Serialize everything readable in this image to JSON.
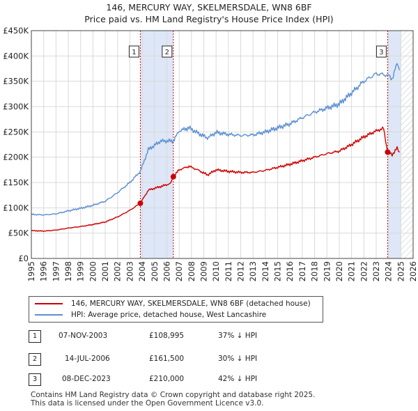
{
  "chart_data": {
    "type": "line",
    "title": "146, MERCURY WAY, SKELMERSDALE, WN8 6BF",
    "subtitle": "Price paid vs. HM Land Registry's House Price Index (HPI)",
    "xlim": [
      1995,
      2026
    ],
    "ylim": [
      0,
      450000
    ],
    "y_ticks": [
      0,
      50000,
      100000,
      150000,
      200000,
      250000,
      300000,
      350000,
      400000,
      450000
    ],
    "y_tick_labels": [
      "£0",
      "£50K",
      "£100K",
      "£150K",
      "£200K",
      "£250K",
      "£300K",
      "£350K",
      "£400K",
      "£450K"
    ],
    "x_tick_labels": [
      "1995",
      "1996",
      "1997",
      "1998",
      "1999",
      "2000",
      "2001",
      "2002",
      "2003",
      "2004",
      "2005",
      "2006",
      "2007",
      "2008",
      "2009",
      "2010",
      "2011",
      "2012",
      "2013",
      "2014",
      "2015",
      "2016",
      "2017",
      "2018",
      "2019",
      "2020",
      "2021",
      "2022",
      "2023",
      "2024",
      "2025",
      "2026"
    ],
    "grid": true,
    "shaded_periods": [
      [
        2003.85,
        2006.53
      ],
      [
        2023.93,
        2025.0
      ]
    ],
    "hatched_period": [
      2025.0,
      2026.0
    ],
    "series": [
      {
        "name": "146, MERCURY WAY, SKELMERSDALE, WN8 6BF (detached house)",
        "color": "#cc0000",
        "points": [
          [
            1995.0,
            55000
          ],
          [
            1996.0,
            54000
          ],
          [
            1997.0,
            56000
          ],
          [
            1998.0,
            60000
          ],
          [
            1999.0,
            63000
          ],
          [
            2000.0,
            67000
          ],
          [
            2001.0,
            72000
          ],
          [
            2002.0,
            82000
          ],
          [
            2003.0,
            95000
          ],
          [
            2003.85,
            108995
          ],
          [
            2004.5,
            135000
          ],
          [
            2005.5,
            142000
          ],
          [
            2006.3,
            148000
          ],
          [
            2006.53,
            161500
          ],
          [
            2007.0,
            175000
          ],
          [
            2007.8,
            182000
          ],
          [
            2008.5,
            175000
          ],
          [
            2009.3,
            165000
          ],
          [
            2010.0,
            175000
          ],
          [
            2011.0,
            172000
          ],
          [
            2012.0,
            170000
          ],
          [
            2013.0,
            170000
          ],
          [
            2014.0,
            174000
          ],
          [
            2015.0,
            180000
          ],
          [
            2016.0,
            186000
          ],
          [
            2017.0,
            193000
          ],
          [
            2018.0,
            200000
          ],
          [
            2019.0,
            207000
          ],
          [
            2020.0,
            212000
          ],
          [
            2021.0,
            225000
          ],
          [
            2022.0,
            240000
          ],
          [
            2023.0,
            252000
          ],
          [
            2023.6,
            257000
          ],
          [
            2023.93,
            210000
          ],
          [
            2024.3,
            205000
          ],
          [
            2024.7,
            218000
          ],
          [
            2024.9,
            210000
          ]
        ]
      },
      {
        "name": "HPI: Average price, detached house, West Lancashire",
        "color": "#5b8fd0",
        "points": [
          [
            1995.0,
            87000
          ],
          [
            1996.0,
            86000
          ],
          [
            1997.0,
            88000
          ],
          [
            1998.0,
            94000
          ],
          [
            1999.0,
            99000
          ],
          [
            2000.0,
            105000
          ],
          [
            2001.0,
            113000
          ],
          [
            2002.0,
            130000
          ],
          [
            2003.0,
            150000
          ],
          [
            2003.85,
            172000
          ],
          [
            2004.5,
            215000
          ],
          [
            2005.5,
            232000
          ],
          [
            2006.53,
            232000
          ],
          [
            2007.0,
            252000
          ],
          [
            2007.8,
            258000
          ],
          [
            2008.5,
            248000
          ],
          [
            2009.3,
            238000
          ],
          [
            2010.0,
            249000
          ],
          [
            2011.0,
            245000
          ],
          [
            2012.0,
            243000
          ],
          [
            2013.0,
            244000
          ],
          [
            2014.0,
            250000
          ],
          [
            2015.0,
            258000
          ],
          [
            2016.0,
            266000
          ],
          [
            2017.0,
            278000
          ],
          [
            2018.0,
            289000
          ],
          [
            2019.0,
            297000
          ],
          [
            2020.0,
            305000
          ],
          [
            2021.0,
            327000
          ],
          [
            2022.0,
            350000
          ],
          [
            2023.0,
            365000
          ],
          [
            2023.93,
            362000
          ],
          [
            2024.3,
            355000
          ],
          [
            2024.7,
            385000
          ],
          [
            2024.9,
            372000
          ]
        ]
      }
    ],
    "markers": [
      {
        "label": "1",
        "x": 2003.85,
        "y": 108995
      },
      {
        "label": "2",
        "x": 2006.53,
        "y": 161500
      },
      {
        "label": "3",
        "x": 2023.93,
        "y": 210000
      }
    ]
  },
  "legend": {
    "item1": "146, MERCURY WAY, SKELMERSDALE, WN8 6BF (detached house)",
    "item2": "HPI: Average price, detached house, West Lancashire"
  },
  "transactions": [
    {
      "num": "1",
      "date": "07-NOV-2003",
      "price": "£108,995",
      "hpi": "37% ↓ HPI"
    },
    {
      "num": "2",
      "date": "14-JUL-2006",
      "price": "£161,500",
      "hpi": "30% ↓ HPI"
    },
    {
      "num": "3",
      "date": "08-DEC-2023",
      "price": "£210,000",
      "hpi": "42% ↓ HPI"
    }
  ],
  "footer": {
    "line1": "Contains HM Land Registry data © Crown copyright and database right 2025.",
    "line2": "This data is licensed under the Open Government Licence v3.0."
  }
}
